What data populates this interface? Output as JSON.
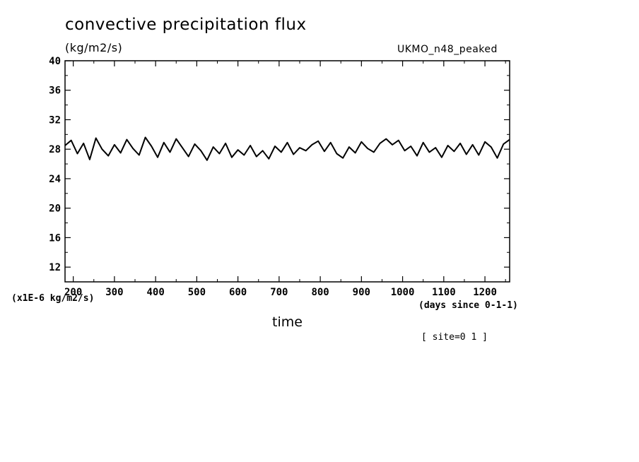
{
  "chart_data": {
    "type": "line",
    "title": "convective precipitation flux",
    "units_label": "(kg/m2/s)",
    "model_label": "UKMO_n48_peaked",
    "scale_note": "(x1E-6 kg/m2/s)",
    "xlabel": "time",
    "x_units": "(days since 0-1-1)",
    "site_label": "[ site=0 1 ]",
    "xlim": [
      180,
      1260
    ],
    "ylim": [
      10,
      40
    ],
    "x_ticks": [
      200,
      300,
      400,
      500,
      600,
      700,
      800,
      900,
      1000,
      1100,
      1200
    ],
    "y_ticks": [
      12,
      16,
      20,
      24,
      28,
      32,
      36,
      40
    ],
    "grid": false,
    "series": [
      {
        "color": "#000000",
        "x": [
          180,
          195,
          210,
          225,
          240,
          255,
          270,
          285,
          300,
          315,
          330,
          345,
          360,
          375,
          390,
          405,
          420,
          435,
          450,
          465,
          480,
          495,
          510,
          525,
          540,
          555,
          570,
          585,
          600,
          615,
          630,
          645,
          660,
          675,
          690,
          705,
          720,
          735,
          750,
          765,
          780,
          795,
          810,
          825,
          840,
          855,
          870,
          885,
          900,
          915,
          930,
          945,
          960,
          975,
          990,
          1005,
          1020,
          1035,
          1050,
          1065,
          1080,
          1095,
          1110,
          1125,
          1140,
          1155,
          1170,
          1185,
          1200,
          1215,
          1230,
          1245,
          1260
        ],
        "y": [
          28.5,
          29.2,
          27.4,
          28.8,
          26.6,
          29.5,
          28.0,
          27.1,
          28.6,
          27.5,
          29.3,
          28.1,
          27.2,
          29.6,
          28.4,
          26.9,
          28.9,
          27.6,
          29.4,
          28.2,
          27.0,
          28.7,
          27.8,
          26.5,
          28.3,
          27.4,
          28.8,
          26.9,
          27.9,
          27.2,
          28.5,
          27.0,
          27.8,
          26.7,
          28.4,
          27.6,
          28.9,
          27.3,
          28.2,
          27.8,
          28.6,
          29.1,
          27.7,
          28.9,
          27.4,
          26.8,
          28.3,
          27.5,
          29.0,
          28.1,
          27.6,
          28.8,
          29.4,
          28.6,
          29.2,
          27.8,
          28.4,
          27.1,
          28.9,
          27.6,
          28.2,
          26.9,
          28.5,
          27.7,
          28.8,
          27.3,
          28.6,
          27.2,
          29.0,
          28.3,
          26.8,
          28.7,
          29.3
        ]
      }
    ]
  }
}
